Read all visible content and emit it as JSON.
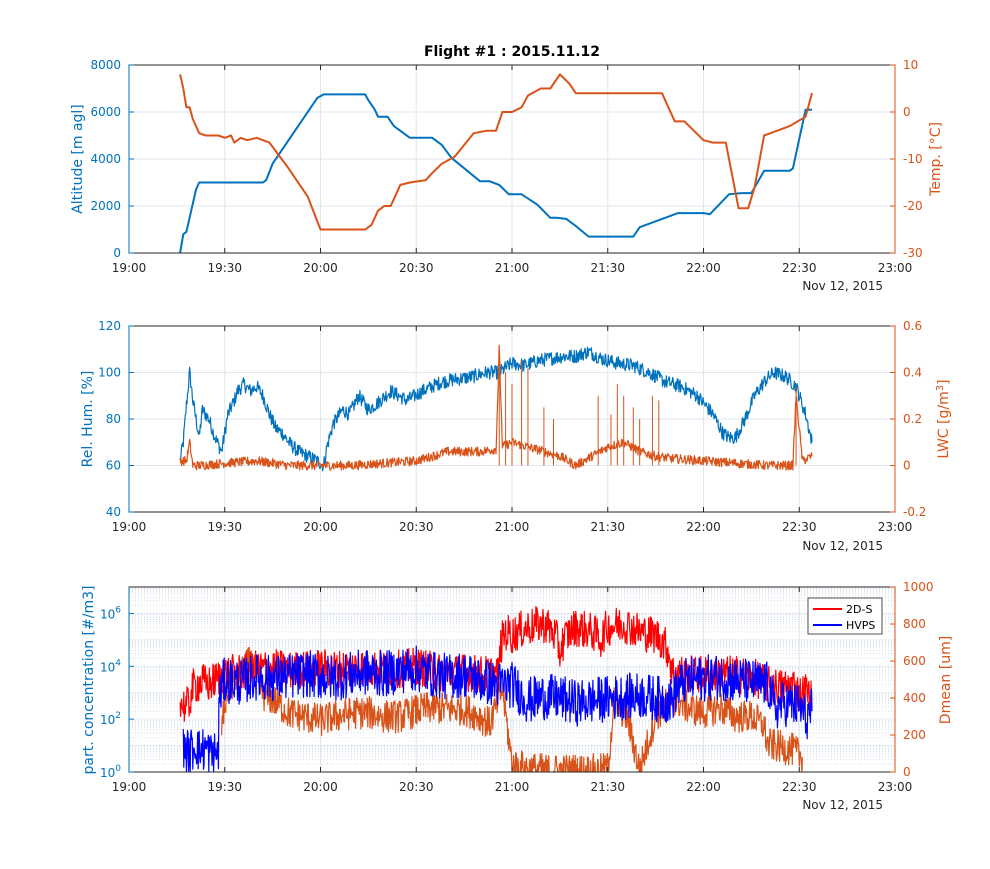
{
  "colors": {
    "blue": "#0072BD",
    "orange": "#D95319",
    "red": "#FF0000",
    "navy": "#0000FF",
    "grid": "#dfe6ee",
    "axis": "#262626"
  },
  "date_label": "Nov 12, 2015",
  "chart_data": [
    {
      "type": "line",
      "title": "Flight #1 : 2015.11.12",
      "x_ticks": [
        "19:00",
        "19:30",
        "20:00",
        "20:30",
        "21:00",
        "21:30",
        "22:00",
        "22:30",
        "23:00"
      ],
      "xlim": [
        "19:00",
        "23:00"
      ],
      "grid": true,
      "left_axis": {
        "label": "Altitude [m agl]",
        "ylim": [
          0,
          8000
        ],
        "ticks": [
          "0",
          "2000",
          "4000",
          "6000",
          "8000"
        ]
      },
      "right_axis": {
        "label": "Temp. [°C]",
        "ylim": [
          -30,
          10
        ],
        "ticks": [
          "-30",
          "-20",
          "-10",
          "0",
          "10"
        ]
      },
      "series": [
        {
          "axis": "left",
          "color": "blue",
          "x": [
            "19:16",
            "19:17",
            "19:18",
            "19:19",
            "19:21",
            "19:22",
            "19:23",
            "19:25",
            "19:35",
            "19:42",
            "19:43",
            "19:45",
            "19:59",
            "20:01",
            "20:08",
            "20:14",
            "20:15",
            "20:17",
            "20:18",
            "20:21",
            "20:23",
            "20:28",
            "20:35",
            "20:38",
            "20:41",
            "20:50",
            "20:53",
            "20:56",
            "20:59",
            "21:03",
            "21:08",
            "21:12",
            "21:14",
            "21:17",
            "21:20",
            "21:24",
            "21:38",
            "21:40",
            "21:50",
            "21:52",
            "22:00",
            "22:02",
            "22:08",
            "22:12",
            "22:15",
            "22:19",
            "22:21",
            "22:27",
            "22:28",
            "22:32",
            "22:34"
          ],
          "y": [
            0,
            800,
            900,
            1500,
            2700,
            3000,
            3000,
            3000,
            3000,
            3000,
            3100,
            3800,
            6600,
            6750,
            6750,
            6750,
            6500,
            6100,
            5800,
            5800,
            5400,
            4900,
            4900,
            4600,
            4050,
            3050,
            3050,
            2900,
            2500,
            2500,
            2050,
            1500,
            1500,
            1450,
            1150,
            700,
            700,
            1100,
            1600,
            1700,
            1700,
            1650,
            2500,
            2550,
            2550,
            3500,
            3500,
            3500,
            3600,
            6100,
            6100
          ]
        },
        {
          "axis": "right",
          "color": "orange",
          "x": [
            "19:16",
            "19:17",
            "19:18",
            "19:19",
            "19:20",
            "19:21",
            "19:22",
            "19:24",
            "19:26",
            "19:28",
            "19:30",
            "19:32",
            "19:33",
            "19:35",
            "19:37",
            "19:40",
            "19:44",
            "19:50",
            "19:56",
            "20:00",
            "20:08",
            "20:14",
            "20:16",
            "20:18",
            "20:20",
            "20:22",
            "20:25",
            "20:28",
            "20:33",
            "20:35",
            "20:38",
            "20:42",
            "20:48",
            "20:52",
            "20:55",
            "20:57",
            "21:00",
            "21:03",
            "21:05",
            "21:09",
            "21:12",
            "21:15",
            "21:18",
            "21:20",
            "21:23",
            "21:35",
            "21:37",
            "21:42",
            "21:47",
            "21:51",
            "21:54",
            "22:00",
            "22:03",
            "22:07",
            "22:11",
            "22:14",
            "22:16",
            "22:19",
            "22:23",
            "22:27",
            "22:32",
            "22:34"
          ],
          "y": [
            8,
            5,
            1,
            1,
            -1.5,
            -3,
            -4.5,
            -5,
            -5,
            -5,
            -5.5,
            -5,
            -6.5,
            -5.5,
            -6,
            -5.5,
            -6.5,
            -12,
            -18,
            -25,
            -25,
            -25,
            -24,
            -21,
            -20,
            -20,
            -15.5,
            -15,
            -14.5,
            -13,
            -11,
            -9.5,
            -4.5,
            -4,
            -4,
            0,
            0,
            1,
            3.5,
            5,
            5,
            8,
            6,
            4,
            4,
            4,
            4,
            4,
            4,
            -2,
            -2,
            -6,
            -6.5,
            -6.5,
            -20.5,
            -20.5,
            -16,
            -5,
            -4,
            -3,
            -1,
            4
          ]
        }
      ]
    },
    {
      "type": "line",
      "title": "",
      "x_ticks": [
        "19:00",
        "19:30",
        "20:00",
        "20:30",
        "21:00",
        "21:30",
        "22:00",
        "22:30",
        "23:00"
      ],
      "xlim": [
        "19:00",
        "23:00"
      ],
      "grid": true,
      "left_axis": {
        "label": "Rel. Hum. [%]",
        "ylim": [
          40,
          120
        ],
        "ticks": [
          "40",
          "60",
          "80",
          "100",
          "120"
        ]
      },
      "right_axis": {
        "label": "LWC [g/m",
        "label_sup": "3",
        "label_end": "]",
        "ylim": [
          -0.2,
          0.6
        ],
        "ticks": [
          "-0.2",
          "0",
          "0.2",
          "0.4",
          "0.6"
        ]
      },
      "series": [
        {
          "axis": "left",
          "color": "blue",
          "noise": 3,
          "x": [
            "19:16",
            "19:17",
            "19:18",
            "19:19",
            "19:20",
            "19:21",
            "19:22",
            "19:23",
            "19:25",
            "19:27",
            "19:29",
            "19:31",
            "19:33",
            "19:34",
            "19:36",
            "19:38",
            "19:40",
            "19:42",
            "19:44",
            "19:46",
            "19:48",
            "19:50",
            "19:53",
            "19:56",
            "19:59",
            "20:01",
            "20:02",
            "20:04",
            "20:07",
            "20:09",
            "20:12",
            "20:15",
            "20:18",
            "20:22",
            "20:27",
            "20:32",
            "20:38",
            "20:42",
            "20:47",
            "20:52",
            "20:56",
            "21:00",
            "21:04",
            "21:08",
            "21:12",
            "21:16",
            "21:20",
            "21:24",
            "21:28",
            "21:33",
            "21:38",
            "21:43",
            "21:48",
            "21:53",
            "21:58",
            "22:03",
            "22:06",
            "22:08",
            "22:10",
            "22:13",
            "22:16",
            "22:19",
            "22:22",
            "22:26",
            "22:29",
            "22:32",
            "22:34"
          ],
          "y": [
            62,
            70,
            86,
            100,
            88,
            80,
            72,
            84,
            80,
            72,
            66,
            82,
            88,
            92,
            95,
            92,
            94,
            90,
            82,
            76,
            74,
            70,
            66,
            64,
            62,
            60,
            68,
            78,
            84,
            82,
            90,
            84,
            87,
            92,
            88,
            92,
            96,
            97,
            98,
            100,
            100,
            104,
            103,
            105,
            106,
            107,
            107,
            109,
            106,
            104,
            103,
            100,
            96,
            94,
            90,
            82,
            74,
            72,
            72,
            80,
            90,
            96,
            100,
            98,
            94,
            82,
            70
          ]
        },
        {
          "axis": "right",
          "color": "orange",
          "noise": 0.02,
          "x": [
            "19:16",
            "19:18",
            "19:19",
            "19:20",
            "19:22",
            "19:30",
            "19:40",
            "19:50",
            "20:00",
            "20:10",
            "20:20",
            "20:30",
            "20:40",
            "20:50",
            "20:55",
            "20:56",
            "20:57",
            "21:00",
            "21:05",
            "21:10",
            "21:15",
            "21:20",
            "21:25",
            "21:30",
            "21:35",
            "21:40",
            "21:45",
            "21:50",
            "22:00",
            "22:10",
            "22:20",
            "22:28",
            "22:29",
            "22:31",
            "22:34"
          ],
          "y": [
            0.02,
            0.02,
            0.1,
            0.0,
            0.0,
            0.01,
            0.02,
            0.0,
            0.0,
            0.0,
            0.01,
            0.02,
            0.06,
            0.06,
            0.07,
            0.5,
            0.08,
            0.1,
            0.08,
            0.06,
            0.04,
            0.0,
            0.04,
            0.08,
            0.1,
            0.06,
            0.04,
            0.03,
            0.02,
            0.01,
            0.0,
            0.0,
            0.3,
            0.02,
            0.04
          ]
        }
      ],
      "spikes": [
        {
          "axis": "right",
          "color": "orange",
          "x": [
            "20:56",
            "20:58",
            "21:00",
            "21:03",
            "21:05",
            "21:10",
            "21:13",
            "21:27",
            "21:31",
            "21:33",
            "21:35",
            "21:38",
            "21:40",
            "21:44",
            "21:46",
            "22:29"
          ],
          "y": [
            0.5,
            0.4,
            0.35,
            0.45,
            0.42,
            0.25,
            0.2,
            0.3,
            0.22,
            0.35,
            0.3,
            0.25,
            0.2,
            0.3,
            0.28,
            0.34
          ]
        }
      ]
    },
    {
      "type": "line",
      "title": "",
      "x_ticks": [
        "19:00",
        "19:30",
        "20:00",
        "20:30",
        "21:00",
        "21:30",
        "22:00",
        "22:30",
        "23:00"
      ],
      "xlim": [
        "19:00",
        "23:00"
      ],
      "grid": true,
      "legend": "top-right",
      "left_axis": {
        "label": "part. concentration [#/m3]",
        "scale": "log",
        "ylim": [
          1,
          10000000
        ],
        "ticks": [
          "10",
          "10",
          "10",
          "10"
        ],
        "tick_exponents": [
          "0",
          "2",
          "4",
          "6"
        ],
        "tick_values": [
          1,
          100,
          10000,
          1000000
        ]
      },
      "right_axis": {
        "label": "Dmean [um]",
        "ylim": [
          0,
          1000
        ],
        "ticks": [
          "0",
          "200",
          "400",
          "600",
          "800",
          "1000"
        ]
      },
      "series": [
        {
          "axis": "right",
          "color": "orange",
          "noise": 90,
          "x": [
            "19:29",
            "19:31",
            "19:34",
            "19:38",
            "19:42",
            "19:46",
            "19:50",
            "19:55",
            "20:00",
            "20:05",
            "20:10",
            "20:15",
            "20:20",
            "20:25",
            "20:30",
            "20:35",
            "20:40",
            "20:45",
            "20:50",
            "20:53",
            "20:55",
            "20:57",
            "21:00",
            "21:05",
            "21:10",
            "21:15",
            "21:20",
            "21:25",
            "21:28",
            "21:30",
            "21:32",
            "21:36",
            "21:40",
            "21:45",
            "21:50",
            "21:55",
            "22:00",
            "22:05",
            "22:10",
            "22:15",
            "22:19",
            "22:20",
            "22:28",
            "22:31"
          ],
          "y": [
            250,
            450,
            500,
            600,
            420,
            380,
            320,
            300,
            280,
            300,
            320,
            320,
            300,
            300,
            330,
            350,
            340,
            340,
            300,
            260,
            350,
            450,
            40,
            20,
            10,
            10,
            10,
            10,
            10,
            20,
            380,
            300,
            10,
            300,
            400,
            350,
            320,
            350,
            300,
            300,
            250,
            150,
            120,
            80
          ]
        },
        {
          "name": "2D-S",
          "axis": "left",
          "color": "red",
          "noise": 0.18,
          "x": [
            "19:16",
            "19:18",
            "19:19",
            "19:20",
            "19:21",
            "19:23",
            "19:25",
            "19:27",
            "19:30",
            "19:35",
            "19:40",
            "19:45",
            "19:50",
            "19:55",
            "20:00",
            "20:05",
            "20:10",
            "20:15",
            "20:20",
            "20:25",
            "20:30",
            "20:35",
            "20:40",
            "20:45",
            "20:50",
            "20:54",
            "20:56",
            "20:58",
            "21:00",
            "21:05",
            "21:10",
            "21:15",
            "21:20",
            "21:25",
            "21:28",
            "21:30",
            "21:35",
            "21:40",
            "21:45",
            "21:50",
            "21:55",
            "22:00",
            "22:05",
            "22:10",
            "22:15",
            "22:20",
            "22:25",
            "22:28",
            "22:30",
            "22:32",
            "22:34"
          ],
          "y": [
            400,
            300,
            400,
            1500,
            2000,
            2500,
            2000,
            3000,
            5000,
            6000,
            8000,
            9000,
            7000,
            8000,
            9000,
            8000,
            9000,
            9000,
            8000,
            8000,
            10000,
            7000,
            5000,
            6000,
            5000,
            5000,
            5000,
            200000,
            150000,
            300000,
            400000,
            30000,
            300000,
            200000,
            100000,
            300000,
            400000,
            200000,
            150000,
            6000,
            5000,
            5000,
            5000,
            5000,
            4000,
            2000,
            1500,
            2000,
            800,
            1200,
            500
          ]
        },
        {
          "name": "HVPS",
          "axis": "left",
          "color": "navy",
          "noise": 0.22,
          "x": [
            "19:17",
            "19:18",
            "19:19",
            "19:20",
            "19:21",
            "19:22",
            "19:24",
            "19:26",
            "19:28",
            "19:30",
            "19:35",
            "19:40",
            "19:45",
            "19:50",
            "19:55",
            "20:00",
            "20:05",
            "20:10",
            "20:15",
            "20:20",
            "20:25",
            "20:30",
            "20:35",
            "20:40",
            "20:45",
            "20:50",
            "20:55",
            "21:00",
            "21:03",
            "21:05",
            "21:10",
            "21:15",
            "21:20",
            "21:25",
            "21:30",
            "21:35",
            "21:40",
            "21:45",
            "21:50",
            "21:55",
            "22:00",
            "22:05",
            "22:10",
            "22:15",
            "22:20",
            "22:22",
            "22:25",
            "22:30",
            "22:32",
            "22:34"
          ],
          "y": [
            10,
            6,
            5,
            8,
            12,
            6,
            8,
            4,
            6,
            3000,
            2500,
            4000,
            3500,
            4000,
            5000,
            4000,
            3500,
            5000,
            6000,
            5000,
            7000,
            8000,
            5000,
            4000,
            5000,
            3000,
            2000,
            2000,
            800,
            500,
            700,
            600,
            400,
            500,
            600,
            700,
            800,
            600,
            500,
            3000,
            3500,
            4000,
            3000,
            2500,
            2000,
            200,
            400,
            300,
            100,
            200
          ]
        }
      ]
    }
  ]
}
